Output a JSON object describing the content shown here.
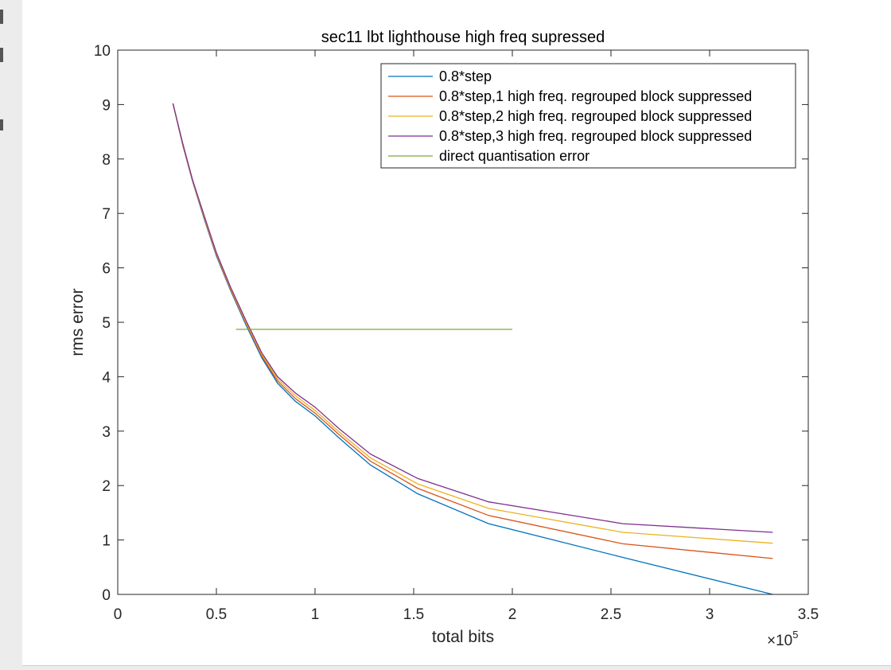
{
  "chart_data": {
    "type": "line",
    "title": "sec11 lbt lighthouse high freq supressed",
    "xlabel": "total bits",
    "ylabel": "rms error",
    "x_multiplier_label": "×10",
    "x_multiplier_exponent": "5",
    "xlim": [
      0,
      3.5
    ],
    "ylim": [
      0,
      10
    ],
    "xticks": [
      0,
      0.5,
      1,
      1.5,
      2,
      2.5,
      3,
      3.5
    ],
    "xtick_labels": [
      "0",
      "0.5",
      "1",
      "1.5",
      "2",
      "2.5",
      "3",
      "3.5"
    ],
    "yticks": [
      0,
      1,
      2,
      3,
      4,
      5,
      6,
      7,
      8,
      9,
      10
    ],
    "ytick_labels": [
      "0",
      "1",
      "2",
      "3",
      "4",
      "5",
      "6",
      "7",
      "8",
      "9",
      "10"
    ],
    "grid": false,
    "legend_position": "top-right",
    "series": [
      {
        "name": "0.8*step",
        "color": "#0072BD",
        "x": [
          0.28,
          0.33,
          0.38,
          0.44,
          0.5,
          0.57,
          0.65,
          0.73,
          0.81,
          0.9,
          1.0,
          1.12,
          1.28,
          1.52,
          1.88,
          2.56,
          3.32
        ],
        "y": [
          9.02,
          8.25,
          7.58,
          6.88,
          6.22,
          5.6,
          4.95,
          4.35,
          3.88,
          3.55,
          3.28,
          2.88,
          2.38,
          1.85,
          1.3,
          0.68,
          0.0
        ]
      },
      {
        "name": "0.8*step,1 high freq. regrouped block suppressed",
        "color": "#D95319",
        "x": [
          0.28,
          0.33,
          0.38,
          0.44,
          0.5,
          0.57,
          0.65,
          0.73,
          0.81,
          0.9,
          1.0,
          1.12,
          1.28,
          1.52,
          1.88,
          2.56,
          3.32
        ],
        "y": [
          9.02,
          8.26,
          7.59,
          6.9,
          6.24,
          5.62,
          4.98,
          4.38,
          3.92,
          3.6,
          3.33,
          2.94,
          2.45,
          1.95,
          1.45,
          0.93,
          0.66
        ]
      },
      {
        "name": "0.8*step,2 high freq. regrouped block suppressed",
        "color": "#EDB120",
        "x": [
          0.28,
          0.33,
          0.38,
          0.44,
          0.5,
          0.57,
          0.65,
          0.73,
          0.81,
          0.9,
          1.0,
          1.12,
          1.28,
          1.52,
          1.88,
          2.56,
          3.32
        ],
        "y": [
          9.02,
          8.27,
          7.6,
          6.92,
          6.26,
          5.64,
          5.0,
          4.41,
          3.96,
          3.65,
          3.38,
          2.99,
          2.51,
          2.03,
          1.58,
          1.14,
          0.94
        ]
      },
      {
        "name": "0.8*step,3 high freq. regrouped block suppressed",
        "color": "#7E2F8E",
        "x": [
          0.28,
          0.33,
          0.38,
          0.44,
          0.5,
          0.57,
          0.65,
          0.73,
          0.81,
          0.9,
          1.0,
          1.12,
          1.28,
          1.52,
          1.88,
          2.56,
          3.32
        ],
        "y": [
          9.02,
          8.28,
          7.61,
          6.94,
          6.28,
          5.66,
          5.03,
          4.44,
          4.0,
          3.7,
          3.44,
          3.05,
          2.58,
          2.13,
          1.7,
          1.3,
          1.14
        ]
      },
      {
        "name": "direct quantisation error",
        "color": "#77AC30",
        "x": [
          0.6,
          2.0
        ],
        "y": [
          4.87,
          4.87
        ]
      }
    ]
  }
}
